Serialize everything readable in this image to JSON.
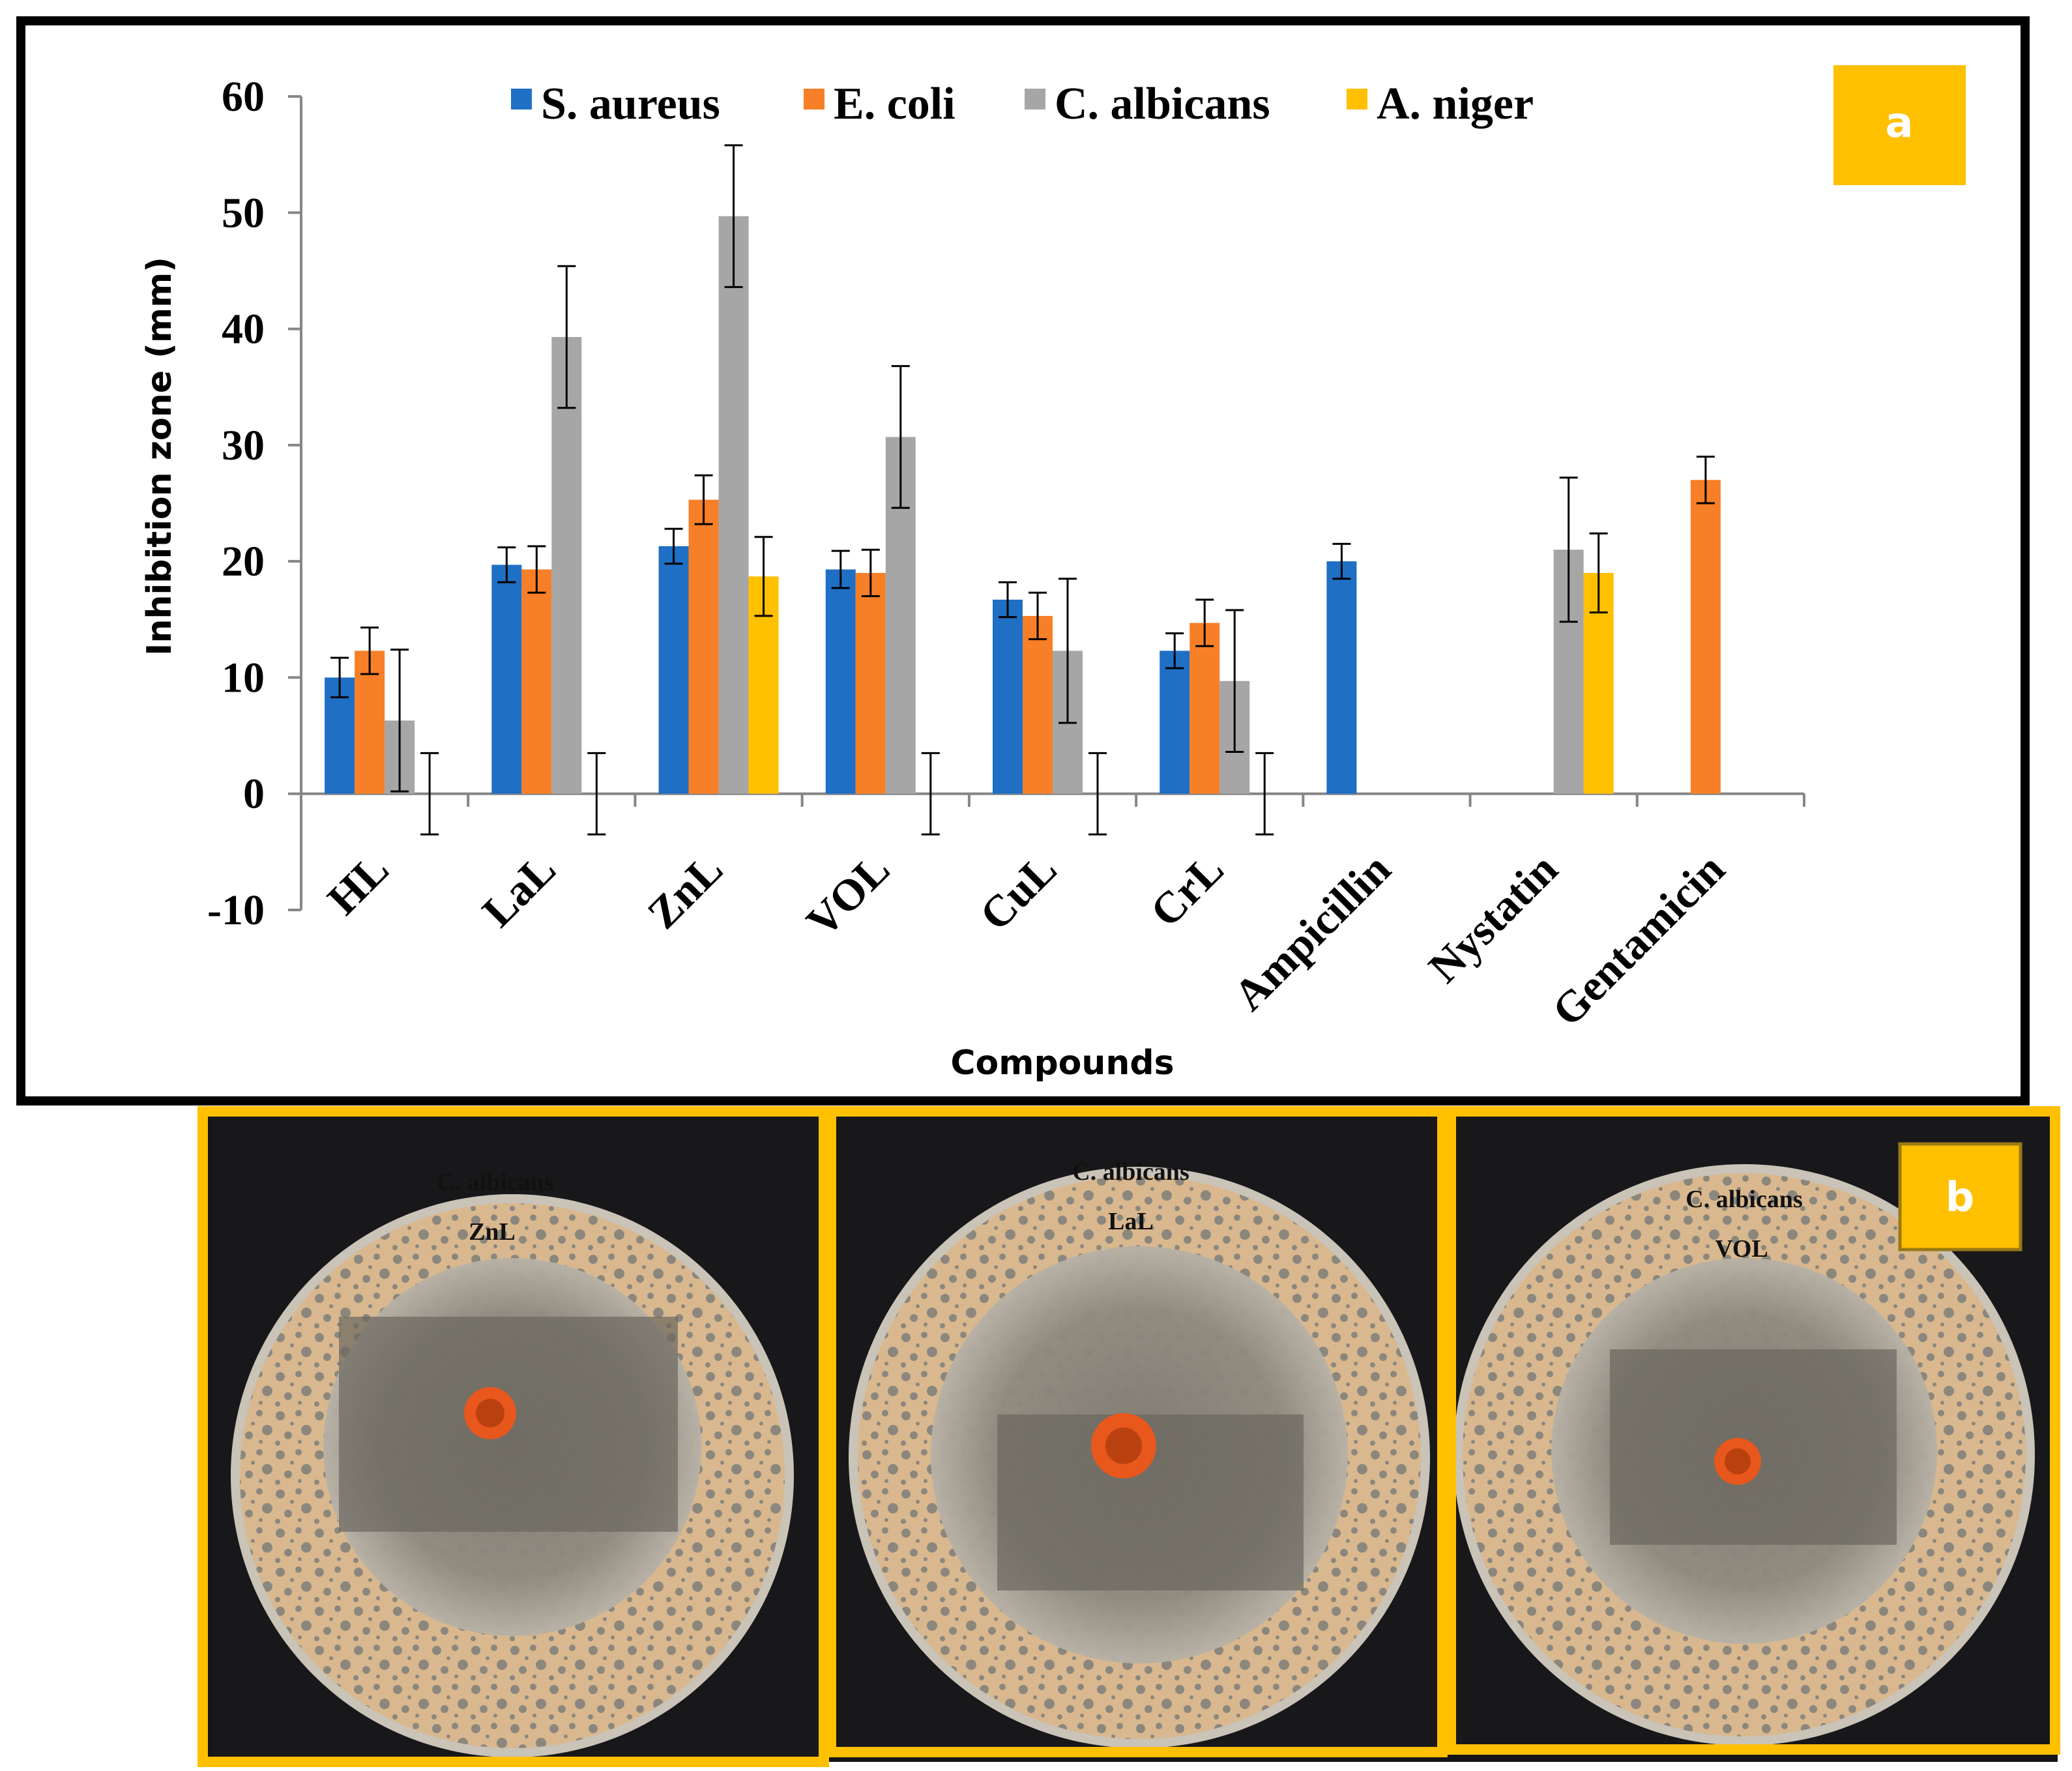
{
  "colors": {
    "s_aureus": "#1F6FC5",
    "e_coli": "#F77F27",
    "c_albicans": "#A6A6A6",
    "a_niger": "#FFC000",
    "panel_border_a": "#000000",
    "panel_border_b": "#FFC000",
    "label_badge": "#FFC000"
  },
  "chart_data": {
    "type": "bar",
    "title": "",
    "panel_label": "a",
    "xlabel": "Compounds",
    "ylabel": "Inhibition zone (mm)",
    "ylim": [
      -10,
      60
    ],
    "yticks": [
      -10,
      0,
      10,
      20,
      30,
      40,
      50,
      60
    ],
    "ytick_labels": [
      "-10",
      "0",
      "10",
      "20",
      "30",
      "40",
      "50",
      "60"
    ],
    "grid": false,
    "legend_position": "top-center",
    "categories": [
      "HL",
      "LaL",
      "ZnL",
      "VOL",
      "CuL",
      "CrL",
      "Ampicillin",
      "Nystatin",
      "Gentamicin"
    ],
    "series": [
      {
        "name": "S. aureus",
        "color_key": "s_aureus",
        "values": [
          10,
          19.7,
          21.3,
          19.3,
          16.7,
          12.3,
          20,
          null,
          null
        ],
        "errors": [
          1.7,
          1.5,
          1.5,
          1.6,
          1.5,
          1.5,
          1.5,
          null,
          null
        ]
      },
      {
        "name": "E. coli",
        "color_key": "e_coli",
        "values": [
          12.3,
          19.3,
          25.3,
          19,
          15.3,
          14.7,
          null,
          null,
          27
        ],
        "errors": [
          2,
          2,
          2.1,
          2,
          2,
          2,
          null,
          null,
          2
        ]
      },
      {
        "name": "C. albicans",
        "color_key": "c_albicans",
        "values": [
          6.3,
          39.3,
          49.7,
          30.7,
          12.3,
          9.7,
          null,
          21,
          null
        ],
        "errors": [
          6.1,
          6.1,
          6.1,
          6.1,
          6.2,
          6.1,
          null,
          6.2,
          null
        ]
      },
      {
        "name": "A. niger",
        "color_key": "a_niger",
        "values": [
          0,
          0,
          18.7,
          0,
          0,
          0,
          null,
          19,
          null
        ],
        "errors": [
          3.5,
          3.5,
          3.4,
          3.5,
          3.5,
          3.5,
          null,
          3.4,
          null
        ]
      }
    ]
  },
  "panel_b": {
    "label": "b",
    "plates": [
      {
        "organism": "C. albicans",
        "compound": "ZnL"
      },
      {
        "organism": "C. albicans",
        "compound": "LaL"
      },
      {
        "organism": "C. albicans",
        "compound": "VOL"
      }
    ]
  }
}
